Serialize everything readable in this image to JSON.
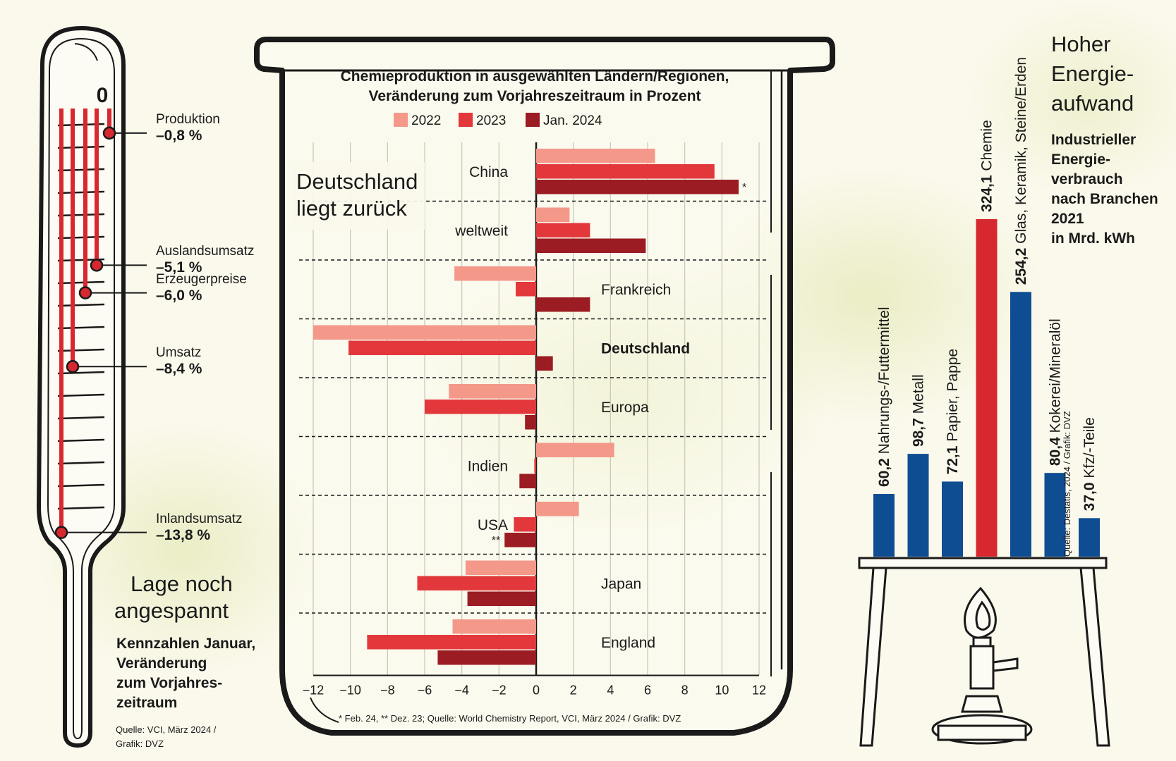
{
  "thermometer": {
    "zero_label": "0",
    "indicators": [
      {
        "label": "Produktion",
        "value": "–0,8 %",
        "num": -0.8
      },
      {
        "label": "Auslandsumsatz",
        "value": "–5,1 %",
        "num": -5.1
      },
      {
        "label": "Erzeugerpreise",
        "value": "–6,0 %",
        "num": -6.0
      },
      {
        "label": "Umsatz",
        "value": "–8,4 %",
        "num": -8.4
      },
      {
        "label": "Inlandsumsatz",
        "value": "–13,8 %",
        "num": -13.8
      }
    ],
    "headline_1": "Lage noch",
    "headline_2": "angespannt",
    "subtitle_1": "Kennzahlen Januar,",
    "subtitle_2": "Veränderung",
    "subtitle_3": "zum Vorjahres-",
    "subtitle_4": "zeitraum",
    "source_1": "Quelle: VCI, März 2024 /",
    "source_2": "Grafik: DVZ"
  },
  "beaker": {
    "headline_1": "Deutschland",
    "headline_2": "liegt zurück",
    "footnote": "* Feb. 24, ** Dez. 23; Quelle: World Chemistry Report, VCI, März 2024 / Grafik: DVZ"
  },
  "energy": {
    "headline_1": "Hoher",
    "headline_2": "Energie-",
    "headline_3": "aufwand",
    "subtitle_1": "Industrieller",
    "subtitle_2": "Energie-",
    "subtitle_3": "verbrauch",
    "subtitle_4": "nach Branchen",
    "subtitle_5": "2021",
    "subtitle_6": "in Mrd. kWh",
    "source": "Quelle: Destatis, 2024 / Grafik: DVZ"
  },
  "colors": {
    "c2022": "#f4988a",
    "c2023": "#e2383c",
    "cJan": "#9b1c22",
    "blue": "#0f4d92",
    "red": "#d8282f",
    "thermo_red": "#d8282f",
    "ink": "#1a1a1a"
  },
  "chart_data": [
    {
      "type": "bar",
      "orientation": "horizontal",
      "title": "Chemieproduktion in ausgewählten Ländern/Regionen, Veränderung zum Vorjahreszeitraum in Prozent",
      "legend": [
        "2022",
        "2023",
        "Jan. 2024"
      ],
      "legend_position": "top",
      "categories": [
        "China",
        "weltweit",
        "Frankreich",
        "Deutschland",
        "Europa",
        "Indien",
        "USA",
        "Japan",
        "England"
      ],
      "series": [
        {
          "name": "2022",
          "values": [
            6.4,
            1.8,
            -4.4,
            -12.0,
            -4.7,
            4.2,
            2.3,
            -3.8,
            -4.5
          ]
        },
        {
          "name": "2023",
          "values": [
            9.6,
            2.9,
            -1.1,
            -10.1,
            -6.0,
            -0.1,
            -1.2,
            -6.4,
            -9.1
          ]
        },
        {
          "name": "Jan. 2024",
          "values": [
            10.9,
            5.9,
            2.9,
            0.9,
            -0.6,
            -0.9,
            -1.7,
            -3.7,
            -5.3
          ]
        }
      ],
      "annotations": [
        {
          "category": "China",
          "series": "Jan. 2024",
          "mark": "*"
        },
        {
          "category": "USA",
          "series": "Jan. 2024",
          "mark": "**"
        }
      ],
      "xlim": [
        -12,
        12
      ],
      "xticks": [
        -12,
        -10,
        -8,
        -6,
        -4,
        -2,
        0,
        2,
        4,
        6,
        8,
        10,
        12
      ],
      "grid": true
    },
    {
      "type": "bar",
      "orientation": "vertical",
      "title": "Industrieller Energieverbrauch nach Branchen 2021 in Mrd. kWh",
      "categories": [
        "Nahrungs-/Futtermittel",
        "Metall",
        "Papier, Pappe",
        "Chemie",
        "Glas, Keramik, Steine/Erden",
        "Kokerei/Mineralöl",
        "Kfz/-Teile"
      ],
      "values": [
        60.2,
        98.7,
        72.1,
        324.1,
        254.2,
        80.4,
        37.0
      ],
      "value_labels": [
        "60,2",
        "98,7",
        "72,1",
        "324,1",
        "254,2",
        "80,4",
        "37,0"
      ],
      "highlight": "Chemie"
    }
  ]
}
